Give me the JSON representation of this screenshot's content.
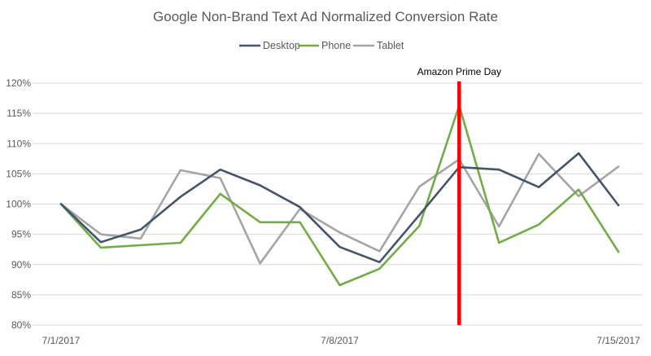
{
  "chart_data": {
    "type": "line",
    "title": "Google Non-Brand Text Ad Normalized Conversion Rate",
    "xlabel": "",
    "ylabel": "",
    "x": [
      "7/1/2017",
      "7/2/2017",
      "7/3/2017",
      "7/4/2017",
      "7/5/2017",
      "7/6/2017",
      "7/7/2017",
      "7/8/2017",
      "7/9/2017",
      "7/10/2017",
      "7/11/2017",
      "7/12/2017",
      "7/13/2017",
      "7/14/2017",
      "7/15/2017"
    ],
    "x_tick_labels": [
      "7/1/2017",
      "7/8/2017",
      "7/15/2017"
    ],
    "y_tick_labels": [
      "80%",
      "85%",
      "90%",
      "95%",
      "100%",
      "105%",
      "110%",
      "115%",
      "120%"
    ],
    "ylim": [
      80,
      120
    ],
    "y_unit": "%",
    "grid": true,
    "legend_position": "top",
    "series": [
      {
        "name": "Desktop",
        "color": "#44546a",
        "values": [
          100,
          93.7,
          95.8,
          101.2,
          105.7,
          103.1,
          99.5,
          92.9,
          90.4,
          98.2,
          106.1,
          105.7,
          102.8,
          108.4,
          99.8
        ]
      },
      {
        "name": "Phone",
        "color": "#70ad47",
        "values": [
          100,
          92.8,
          93.2,
          93.6,
          101.7,
          97.0,
          97.0,
          86.6,
          89.3,
          96.4,
          116.3,
          93.6,
          96.6,
          102.4,
          92.1
        ]
      },
      {
        "name": "Tablet",
        "color": "#a5a5a5",
        "values": [
          100,
          95.0,
          94.3,
          105.6,
          104.3,
          90.2,
          99.2,
          95.3,
          92.2,
          102.9,
          107.4,
          96.3,
          108.3,
          101.3,
          106.2
        ]
      }
    ],
    "annotations": [
      {
        "label": "Amazon Prime Day",
        "x": "7/11/2017",
        "color": "#ff0000"
      }
    ]
  }
}
